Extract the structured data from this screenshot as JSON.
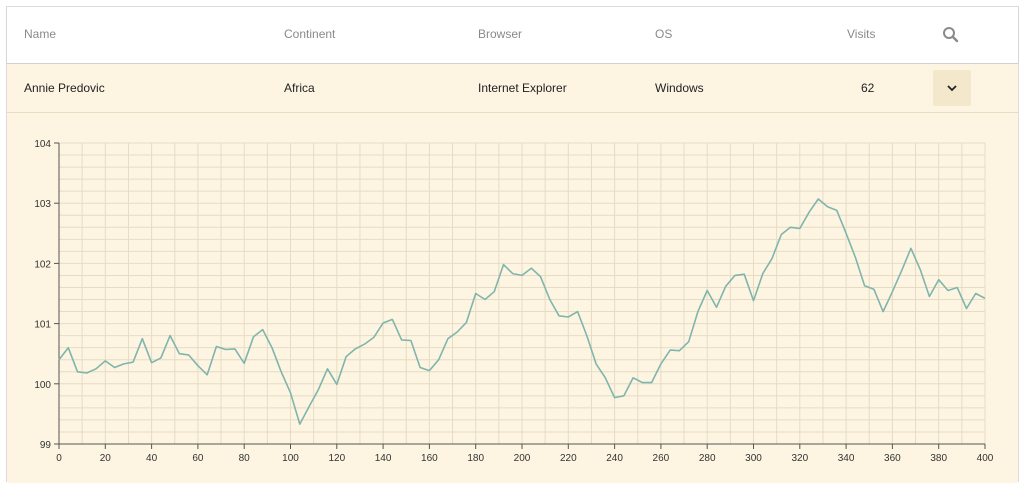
{
  "table": {
    "columns": [
      "Name",
      "Continent",
      "Browser",
      "OS",
      "Visits"
    ],
    "row": {
      "name": "Annie Predovic",
      "continent": "Africa",
      "browser": "Internet Explorer",
      "os": "Windows",
      "visits": "62"
    },
    "icons": {
      "search": "search-icon",
      "expand": "chevron-down-icon"
    }
  },
  "colors": {
    "row_background": "#fdf5e2",
    "line": "#7fb5ad",
    "grid": "#e6dcc4"
  },
  "chart_data": {
    "type": "line",
    "title": "",
    "xlabel": "",
    "ylabel": "",
    "xlim": [
      0,
      400
    ],
    "ylim": [
      99,
      104
    ],
    "xticks": [
      0,
      20,
      40,
      60,
      80,
      100,
      120,
      140,
      160,
      180,
      200,
      220,
      240,
      260,
      280,
      300,
      320,
      340,
      360,
      380,
      400
    ],
    "yticks": [
      99,
      100,
      101,
      102,
      103,
      104
    ],
    "grid": true,
    "series": [
      {
        "values": [
          [
            0,
            100.4
          ],
          [
            4,
            100.6
          ],
          [
            8,
            100.2
          ],
          [
            12,
            100.18
          ],
          [
            16,
            100.25
          ],
          [
            20,
            100.38
          ],
          [
            24,
            100.27
          ],
          [
            28,
            100.33
          ],
          [
            32,
            100.36
          ],
          [
            36,
            100.75
          ],
          [
            40,
            100.35
          ],
          [
            44,
            100.43
          ],
          [
            48,
            100.8
          ],
          [
            52,
            100.5
          ],
          [
            56,
            100.48
          ],
          [
            60,
            100.3
          ],
          [
            64,
            100.15
          ],
          [
            68,
            100.62
          ],
          [
            72,
            100.57
          ],
          [
            76,
            100.58
          ],
          [
            80,
            100.34
          ],
          [
            84,
            100.78
          ],
          [
            88,
            100.9
          ],
          [
            92,
            100.6
          ],
          [
            96,
            100.2
          ],
          [
            100,
            99.85
          ],
          [
            104,
            99.33
          ],
          [
            108,
            99.62
          ],
          [
            112,
            99.9
          ],
          [
            116,
            100.25
          ],
          [
            120,
            99.99
          ],
          [
            124,
            100.45
          ],
          [
            128,
            100.58
          ],
          [
            132,
            100.66
          ],
          [
            136,
            100.77
          ],
          [
            140,
            101.01
          ],
          [
            144,
            101.07
          ],
          [
            148,
            100.73
          ],
          [
            152,
            100.72
          ],
          [
            156,
            100.27
          ],
          [
            160,
            100.22
          ],
          [
            164,
            100.4
          ],
          [
            168,
            100.75
          ],
          [
            172,
            100.86
          ],
          [
            176,
            101.02
          ],
          [
            180,
            101.5
          ],
          [
            184,
            101.4
          ],
          [
            188,
            101.53
          ],
          [
            192,
            101.98
          ],
          [
            196,
            101.83
          ],
          [
            200,
            101.8
          ],
          [
            204,
            101.92
          ],
          [
            208,
            101.78
          ],
          [
            212,
            101.4
          ],
          [
            216,
            101.13
          ],
          [
            220,
            101.11
          ],
          [
            224,
            101.2
          ],
          [
            228,
            100.8
          ],
          [
            232,
            100.33
          ],
          [
            236,
            100.1
          ],
          [
            240,
            99.77
          ],
          [
            244,
            99.8
          ],
          [
            248,
            100.1
          ],
          [
            252,
            100.02
          ],
          [
            256,
            100.02
          ],
          [
            260,
            100.33
          ],
          [
            264,
            100.56
          ],
          [
            268,
            100.55
          ],
          [
            272,
            100.7
          ],
          [
            276,
            101.2
          ],
          [
            280,
            101.55
          ],
          [
            284,
            101.27
          ],
          [
            288,
            101.62
          ],
          [
            292,
            101.8
          ],
          [
            296,
            101.82
          ],
          [
            300,
            101.38
          ],
          [
            304,
            101.83
          ],
          [
            308,
            102.08
          ],
          [
            312,
            102.48
          ],
          [
            316,
            102.6
          ],
          [
            320,
            102.58
          ],
          [
            324,
            102.85
          ],
          [
            328,
            103.07
          ],
          [
            332,
            102.94
          ],
          [
            336,
            102.88
          ],
          [
            340,
            102.5
          ],
          [
            344,
            102.1
          ],
          [
            348,
            101.63
          ],
          [
            352,
            101.57
          ],
          [
            356,
            101.2
          ],
          [
            360,
            101.53
          ],
          [
            364,
            101.88
          ],
          [
            368,
            102.25
          ],
          [
            372,
            101.9
          ],
          [
            376,
            101.45
          ],
          [
            380,
            101.73
          ],
          [
            384,
            101.55
          ],
          [
            388,
            101.6
          ],
          [
            392,
            101.25
          ],
          [
            396,
            101.5
          ],
          [
            400,
            101.42
          ]
        ]
      }
    ]
  }
}
